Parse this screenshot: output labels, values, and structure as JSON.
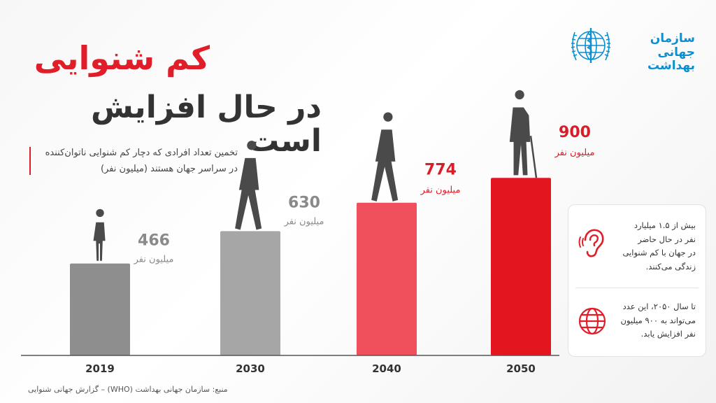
{
  "header": {
    "title_line1": "کم شنوایی",
    "title_line2": "در حال افزایش است",
    "subtitle_line1": "تخمین تعداد افرادی که دچار کم شنوایی ناتوان‌کننده",
    "subtitle_line2": "در سراسر جهان هستند (میلیون نفر)"
  },
  "logo": {
    "name_line1": "سازمان جهانی",
    "name_line2": "بهداشت",
    "icon": "who-emblem-icon"
  },
  "chart_data": {
    "type": "bar",
    "title": "",
    "xlabel": "",
    "ylabel": "",
    "categories": [
      "2019",
      "2030",
      "2040",
      "2050"
    ],
    "values": [
      466,
      630,
      774,
      900
    ],
    "value_unit": "میلیون نفر",
    "value_labels": [
      "466",
      "630",
      "774",
      "900"
    ],
    "ylim": [
      0,
      1000
    ],
    "grid": false,
    "legend": "none",
    "bar_colors": [
      "#8e8e8e",
      "#a6a6a6",
      "#f0505c",
      "#e3151f"
    ],
    "label_colors": [
      "#8a8a8a",
      "#8a8a8a",
      "#d81e28",
      "#d81e28"
    ],
    "figure_icons": [
      "child-figure-icon",
      "walking-man-icon",
      "walking-man-icon",
      "elderly-man-cane-icon"
    ]
  },
  "facts": [
    {
      "icon": "ear-icon",
      "lines": [
        "بیش از ۱.۵ میلیارد",
        "نفر در حال حاضر",
        "در جهان با کم شنوایی",
        "زندگی می‌کنند."
      ]
    },
    {
      "icon": "globe-icon",
      "lines": [
        "تا سال ۲۰۵۰، این عدد",
        "می‌تواند به ۹۰۰ میلیون",
        "نفر افزایش یابد."
      ]
    }
  ],
  "source": "منبع: سازمان جهانی بهداشت (WHO) – گزارش جهانی شنوایی",
  "colors": {
    "accent_red": "#e11d2a",
    "who_blue": "#0b8fd1",
    "text_dark": "#333333"
  }
}
